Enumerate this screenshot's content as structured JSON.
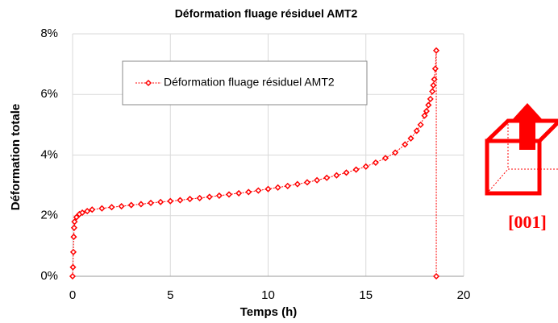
{
  "chart_data": {
    "type": "line",
    "title": "Déformation fluage résiduel AMT2",
    "xlabel": "Temps (h)",
    "ylabel": "Déformation  totale",
    "annotation": "[001]",
    "x": [
      0,
      0.02,
      0.04,
      0.06,
      0.08,
      0.1,
      0.2,
      0.35,
      0.5,
      0.75,
      1,
      1.5,
      2,
      2.5,
      3,
      3.5,
      4,
      4.5,
      5,
      5.5,
      6,
      6.5,
      7,
      7.5,
      8,
      8.5,
      9,
      9.5,
      10,
      10.5,
      11,
      11.5,
      12,
      12.5,
      13,
      13.5,
      14,
      14.5,
      15,
      15.5,
      16,
      16.5,
      17,
      17.3,
      17.6,
      17.8,
      18,
      18.1,
      18.2,
      18.3,
      18.4,
      18.45,
      18.5,
      18.55,
      18.6,
      18.6
    ],
    "series": [
      {
        "name": "Déformation fluage résiduel AMT2",
        "color": "#ff0000",
        "values": [
          0,
          0.3,
          0.8,
          1.3,
          1.6,
          1.8,
          1.95,
          2.05,
          2.1,
          2.15,
          2.2,
          2.24,
          2.28,
          2.31,
          2.35,
          2.38,
          2.42,
          2.45,
          2.48,
          2.51,
          2.55,
          2.58,
          2.62,
          2.66,
          2.7,
          2.74,
          2.78,
          2.83,
          2.88,
          2.93,
          2.98,
          3.04,
          3.1,
          3.17,
          3.25,
          3.33,
          3.42,
          3.52,
          3.62,
          3.75,
          3.9,
          4.08,
          4.35,
          4.55,
          4.8,
          5.0,
          5.3,
          5.45,
          5.65,
          5.85,
          6.1,
          6.3,
          6.5,
          6.85,
          7.45,
          0
        ]
      }
    ],
    "xlim": [
      0,
      20
    ],
    "xticks": [
      0,
      5,
      10,
      15,
      20
    ],
    "ylim": [
      0,
      8
    ],
    "yticks": [
      {
        "value": 0,
        "label": "0%"
      },
      {
        "value": 2,
        "label": "2%"
      },
      {
        "value": 4,
        "label": "4%"
      },
      {
        "value": 6,
        "label": "6%"
      },
      {
        "value": 8,
        "label": "8%"
      }
    ],
    "grid": true,
    "legend": "top-left"
  }
}
